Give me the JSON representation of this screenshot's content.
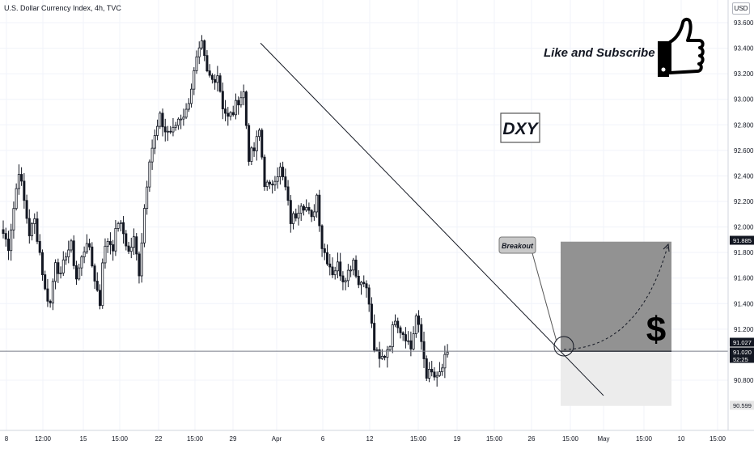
{
  "header": {
    "symbol_title": "U.S. Dollar Currency Index, 4h, TVC",
    "currency_badge": "USD"
  },
  "annotations": {
    "like_subscribe": "Like and Subscribe",
    "ticker_box": "DXY",
    "breakout_callout": "Breakout",
    "dollar_sign": "$",
    "thumbs_up": "thumbs-up-icon"
  },
  "colors": {
    "candle": "#131722",
    "profit_zone": "#8c8c8c",
    "loss_zone": "#ececec",
    "trendline": "#131722",
    "grid": "#f0f3fa",
    "callout_bg": "#c8c8c8"
  },
  "chart_data": {
    "type": "candlestick",
    "instrument": "U.S. Dollar Currency Index",
    "timeframe": "4h",
    "source": "TVC",
    "x_tick_labels": [
      "8",
      "12:00",
      "15",
      "15:00",
      "22",
      "15:00",
      "29",
      "Apr",
      "6",
      "12",
      "15:00",
      "19",
      "15:00",
      "26",
      "15:00",
      "May",
      "15:00",
      "10",
      "15:00"
    ],
    "y_tick_labels": [
      "93.600",
      "93.400",
      "93.200",
      "93.000",
      "92.800",
      "92.600",
      "92.400",
      "92.200",
      "92.000",
      "91.800",
      "91.600",
      "91.400",
      "91.200",
      "90.800"
    ],
    "ylim": [
      90.5,
      93.7
    ],
    "price_labels": [
      {
        "label": "91.885",
        "value": 91.885,
        "style": "dark"
      },
      {
        "label": "91.027",
        "value": 91.027,
        "style": "dark"
      },
      {
        "label": "91.020",
        "value": 91.02,
        "style": "dark"
      },
      {
        "label": "52:25",
        "value": 90.97,
        "style": "dark-timer"
      },
      {
        "label": "90.599",
        "value": 90.599,
        "style": "light"
      }
    ],
    "horizontal_line": 91.027,
    "trendline": {
      "start": {
        "bar": 76,
        "price": 93.44
      },
      "end": {
        "bar": 186,
        "price": 90.68
      }
    },
    "position": {
      "entry": 91.027,
      "target": 91.885,
      "stop": 90.599,
      "start_bar": 171,
      "end_bar": 205
    },
    "projection_arc": {
      "from": {
        "bar": 171,
        "price": 91.02
      },
      "to": {
        "bar": 203,
        "price": 91.82
      }
    },
    "bars_total": 216,
    "anchors": [
      [
        0,
        91.95
      ],
      [
        2,
        91.85
      ],
      [
        5,
        92.3
      ],
      [
        6,
        92.45
      ],
      [
        8,
        92.2
      ],
      [
        10,
        91.95
      ],
      [
        12,
        92.05
      ],
      [
        14,
        91.8
      ],
      [
        16,
        91.5
      ],
      [
        18,
        91.4
      ],
      [
        20,
        91.75
      ],
      [
        22,
        91.6
      ],
      [
        24,
        91.8
      ],
      [
        26,
        91.85
      ],
      [
        28,
        91.6
      ],
      [
        30,
        91.75
      ],
      [
        32,
        91.9
      ],
      [
        35,
        91.6
      ],
      [
        37,
        91.4
      ],
      [
        38,
        91.75
      ],
      [
        40,
        91.9
      ],
      [
        42,
        91.85
      ],
      [
        44,
        92.05
      ],
      [
        46,
        91.95
      ],
      [
        48,
        91.8
      ],
      [
        50,
        91.9
      ],
      [
        52,
        91.65
      ],
      [
        54,
        92.15
      ],
      [
        56,
        92.55
      ],
      [
        58,
        92.7
      ],
      [
        60,
        92.85
      ],
      [
        62,
        92.75
      ],
      [
        65,
        92.75
      ],
      [
        67,
        92.85
      ],
      [
        70,
        92.9
      ],
      [
        72,
        93.1
      ],
      [
        74,
        93.3
      ],
      [
        76,
        93.42
      ],
      [
        78,
        93.2
      ],
      [
        80,
        93.15
      ],
      [
        82,
        93.2
      ],
      [
        84,
        92.95
      ],
      [
        86,
        92.85
      ],
      [
        88,
        92.9
      ],
      [
        90,
        93.0
      ],
      [
        92,
        93.05
      ],
      [
        94,
        92.55
      ],
      [
        96,
        92.6
      ],
      [
        98,
        92.75
      ],
      [
        100,
        92.35
      ],
      [
        102,
        92.3
      ],
      [
        104,
        92.4
      ],
      [
        106,
        92.45
      ],
      [
        108,
        92.3
      ],
      [
        110,
        92.05
      ],
      [
        112,
        92.1
      ],
      [
        114,
        92.2
      ],
      [
        116,
        92.15
      ],
      [
        118,
        92.05
      ],
      [
        120,
        92.25
      ],
      [
        122,
        91.85
      ],
      [
        124,
        91.75
      ],
      [
        126,
        91.65
      ],
      [
        128,
        91.7
      ],
      [
        130,
        91.6
      ],
      [
        132,
        91.65
      ],
      [
        134,
        91.75
      ],
      [
        136,
        91.55
      ],
      [
        138,
        91.6
      ],
      [
        140,
        91.4
      ],
      [
        142,
        91.05
      ],
      [
        144,
        90.95
      ],
      [
        146,
        91.0
      ],
      [
        148,
        91.1
      ],
      [
        150,
        91.3
      ],
      [
        152,
        91.2
      ],
      [
        154,
        91.15
      ],
      [
        156,
        91.05
      ],
      [
        158,
        91.3
      ],
      [
        160,
        91.1
      ],
      [
        162,
        90.85
      ],
      [
        164,
        90.85
      ],
      [
        166,
        90.8
      ],
      [
        168,
        90.9
      ],
      [
        170,
        91.02
      ]
    ]
  }
}
